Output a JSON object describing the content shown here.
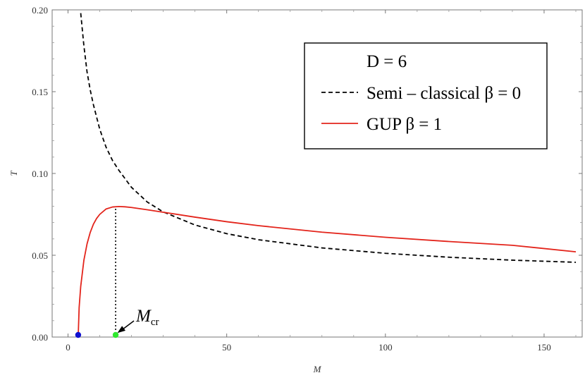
{
  "chart_data": {
    "type": "line",
    "title": "",
    "xlabel": "M",
    "ylabel": "T",
    "xlim": [
      -5,
      162
    ],
    "ylim": [
      0,
      0.2
    ],
    "x_ticks": [
      0,
      50,
      100,
      150
    ],
    "y_ticks": [
      0.0,
      0.05,
      0.1,
      0.15,
      0.2
    ],
    "x_tick_labels": [
      "0",
      "50",
      "100",
      "150"
    ],
    "y_tick_labels": [
      "0.00",
      "0.05",
      "0.10",
      "0.15",
      "0.20"
    ],
    "grid": false,
    "legend_position": "top-right",
    "legend_title": "D = 6",
    "series": [
      {
        "name": "Semi – classical β = 0",
        "style": "dashed",
        "color": "#000000",
        "x": [
          4,
          5,
          6,
          7,
          8,
          10,
          12,
          14,
          16,
          20,
          25,
          30,
          40,
          50,
          60,
          80,
          100,
          120,
          140,
          160
        ],
        "y": [
          0.198,
          0.178,
          0.162,
          0.151,
          0.142,
          0.127,
          0.116,
          0.108,
          0.102,
          0.0915,
          0.0825,
          0.0765,
          0.0685,
          0.0632,
          0.0595,
          0.0545,
          0.0512,
          0.0488,
          0.047,
          0.0457
        ]
      },
      {
        "name": "GUP β = 1",
        "style": "solid",
        "color": "#e3241b",
        "x": [
          3.2,
          3.5,
          4,
          5,
          6,
          7,
          8,
          9,
          10,
          12,
          14,
          16,
          18,
          20,
          25,
          30,
          40,
          50,
          60,
          80,
          100,
          120,
          140,
          160
        ],
        "y": [
          0.0,
          0.018,
          0.031,
          0.047,
          0.057,
          0.064,
          0.069,
          0.0725,
          0.075,
          0.0783,
          0.0795,
          0.0798,
          0.0796,
          0.0792,
          0.0778,
          0.0763,
          0.0733,
          0.0705,
          0.0681,
          0.0641,
          0.061,
          0.0584,
          0.0561,
          0.0521
        ]
      }
    ],
    "markers": [
      {
        "x": 3.2,
        "y": 0.0,
        "color": "#1010d0"
      },
      {
        "x": 15,
        "y": 0.0,
        "color": "#2ee82e"
      }
    ],
    "annotations": [
      {
        "label_main": "M",
        "label_sub": "cr",
        "x": 15,
        "y": 0.0
      },
      {
        "type": "vertical-dotted-line",
        "x": 15,
        "y_from": 0.0,
        "y_to": 0.0797
      }
    ]
  }
}
